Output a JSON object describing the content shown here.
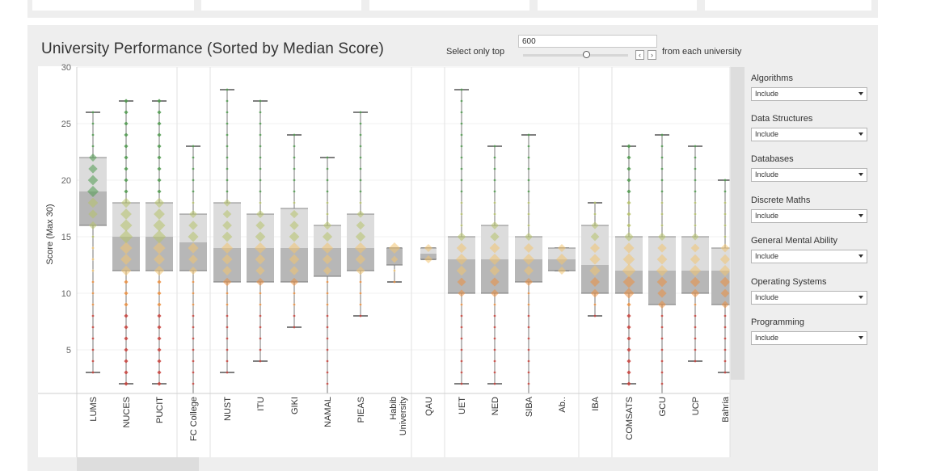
{
  "dashboard": {
    "title": "University Performance (Sorted by Median Score)",
    "select_label": "Select only top",
    "top_value": "600",
    "from_label": "from each university",
    "prev_icon": "chevron-left-icon",
    "next_icon": "chevron-right-icon"
  },
  "filters": [
    {
      "label": "Algorithms",
      "value": "Include"
    },
    {
      "label": "Data Structures",
      "value": "Include"
    },
    {
      "label": "Databases",
      "value": "Include"
    },
    {
      "label": "Discrete Maths",
      "value": "Include"
    },
    {
      "label": "General Mental Ability",
      "value": "Include"
    },
    {
      "label": "Operating Systems",
      "value": "Include"
    },
    {
      "label": "Programming",
      "value": "Include"
    }
  ],
  "chart_data": {
    "type": "boxplot",
    "title": "University Performance (Sorted by Median Score)",
    "ylabel": "Score (Max 30)",
    "ylim": [
      0,
      30
    ],
    "yticks": [
      5,
      10,
      15,
      20,
      25,
      30
    ],
    "grid": true,
    "groups": [
      [
        "LUMS",
        "NUCES",
        "PUCIT"
      ],
      [
        "FC College"
      ],
      [
        "NUST",
        "ITU",
        "GIKI",
        "NAMAL",
        "PIEAS",
        "Habib University"
      ],
      [
        "QAU"
      ],
      [
        "UET",
        "NED",
        "SIBA",
        "Ab.."
      ],
      [
        "IBA"
      ],
      [
        "COMSATS",
        "GCU",
        "UCP",
        "Bahria"
      ]
    ],
    "color_scale": {
      "high": "#4f9a4e",
      "upper_mid": "#b6c26a",
      "mid": "#f2c471",
      "lower_mid": "#ec8f3f",
      "low": "#c9413b"
    },
    "boxes": [
      {
        "name": "LUMS",
        "min": 3,
        "q1": 16,
        "median": 19,
        "q3": 22,
        "max": 26
      },
      {
        "name": "NUCES",
        "min": 2,
        "q1": 12,
        "median": 15,
        "q3": 18,
        "max": 27
      },
      {
        "name": "PUCIT",
        "min": 2,
        "q1": 12,
        "median": 15,
        "q3": 18,
        "max": 27
      },
      {
        "name": "FC College",
        "min": 0,
        "q1": 12,
        "median": 14.5,
        "q3": 17,
        "max": 23
      },
      {
        "name": "NUST",
        "min": 3,
        "q1": 11,
        "median": 14,
        "q3": 18,
        "max": 28
      },
      {
        "name": "ITU",
        "min": 4,
        "q1": 11,
        "median": 14,
        "q3": 17,
        "max": 27
      },
      {
        "name": "GIKI",
        "min": 7,
        "q1": 11,
        "median": 14,
        "q3": 17.5,
        "max": 24
      },
      {
        "name": "NAMAL",
        "min": 0,
        "q1": 11.5,
        "median": 14,
        "q3": 16,
        "max": 22
      },
      {
        "name": "PIEAS",
        "min": 8,
        "q1": 12,
        "median": 14,
        "q3": 17,
        "max": 26
      },
      {
        "name": "Habib University",
        "min": 11,
        "q1": 12.5,
        "median": 14,
        "q3": 14,
        "max": 14
      },
      {
        "name": "QAU",
        "min": 13,
        "q1": 13,
        "median": 13.5,
        "q3": 14,
        "max": 14
      },
      {
        "name": "UET",
        "min": 2,
        "q1": 10,
        "median": 13,
        "q3": 15,
        "max": 28
      },
      {
        "name": "NED",
        "min": 2,
        "q1": 10,
        "median": 13,
        "q3": 16,
        "max": 23
      },
      {
        "name": "SIBA",
        "min": 1,
        "q1": 11,
        "median": 13,
        "q3": 15,
        "max": 24
      },
      {
        "name": "Ab..",
        "min": 12,
        "q1": 12,
        "median": 13,
        "q3": 14,
        "max": 14
      },
      {
        "name": "IBA",
        "min": 8,
        "q1": 10,
        "median": 12.5,
        "q3": 16,
        "max": 18
      },
      {
        "name": "COMSATS",
        "min": 2,
        "q1": 10,
        "median": 12,
        "q3": 15,
        "max": 23
      },
      {
        "name": "GCU",
        "min": 1,
        "q1": 9,
        "median": 12,
        "q3": 15,
        "max": 24
      },
      {
        "name": "UCP",
        "min": 4,
        "q1": 10,
        "median": 12,
        "q3": 15,
        "max": 23
      },
      {
        "name": "Bahria",
        "min": 3,
        "q1": 9,
        "median": 12,
        "q3": 14,
        "max": 20
      }
    ]
  }
}
